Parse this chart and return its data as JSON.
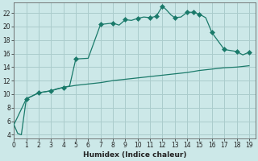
{
  "title": "",
  "xlabel": "Humidex (Indice chaleur)",
  "bg_color": "#cce8e8",
  "grid_color": "#aacccc",
  "line_color": "#1a7a6a",
  "xlim": [
    0,
    19.5
  ],
  "ylim": [
    3.5,
    23.5
  ],
  "xticks": [
    0,
    1,
    2,
    3,
    4,
    5,
    6,
    7,
    8,
    9,
    10,
    11,
    12,
    13,
    14,
    15,
    16,
    17,
    18,
    19
  ],
  "yticks": [
    4,
    6,
    8,
    10,
    12,
    14,
    16,
    18,
    20,
    22
  ],
  "curve1_x": [
    0.0,
    0.3,
    0.6,
    1.0,
    2.0,
    3.0,
    3.5,
    4.0,
    4.5,
    5.0,
    6.0,
    7.0,
    8.0,
    8.5,
    9.0,
    9.5,
    10.0,
    10.5,
    11.0,
    11.5,
    12.0,
    12.3,
    12.7,
    13.0,
    13.5,
    14.0,
    14.5,
    15.0,
    15.5,
    16.0,
    17.0,
    18.0,
    18.5,
    19.0
  ],
  "curve1_y": [
    5.5,
    4.2,
    4.0,
    9.3,
    10.2,
    10.5,
    10.8,
    11.0,
    11.2,
    15.2,
    15.3,
    20.3,
    20.5,
    20.2,
    21.0,
    20.9,
    21.2,
    21.4,
    21.3,
    21.5,
    23.0,
    22.5,
    21.7,
    21.3,
    21.4,
    22.1,
    22.1,
    21.8,
    21.3,
    19.1,
    16.6,
    16.3,
    15.8,
    16.2
  ],
  "curve2_x": [
    0.0,
    1.0,
    2.0,
    3.0,
    4.0,
    5.0,
    6.0,
    7.0,
    8.0,
    9.0,
    10.0,
    11.0,
    12.0,
    13.0,
    14.0,
    15.0,
    16.0,
    17.0,
    18.0,
    19.0
  ],
  "curve2_y": [
    5.5,
    9.3,
    10.2,
    10.5,
    11.0,
    11.3,
    11.5,
    11.7,
    12.0,
    12.2,
    12.4,
    12.6,
    12.8,
    13.0,
    13.2,
    13.5,
    13.7,
    13.9,
    14.0,
    14.2
  ],
  "marker1_x": [
    1.0,
    2.0,
    3.0,
    4.0,
    5.0,
    7.0,
    8.0,
    9.0,
    10.0,
    11.0,
    11.5,
    12.0,
    13.0,
    14.0,
    14.5,
    15.0,
    16.0,
    17.0,
    18.0,
    19.0
  ],
  "marker1_y": [
    9.3,
    10.2,
    10.5,
    11.0,
    15.2,
    20.3,
    20.5,
    21.0,
    21.2,
    21.3,
    21.5,
    23.0,
    21.3,
    22.1,
    22.1,
    21.8,
    19.1,
    16.6,
    16.3,
    16.2
  ],
  "marker_size": 3.0
}
